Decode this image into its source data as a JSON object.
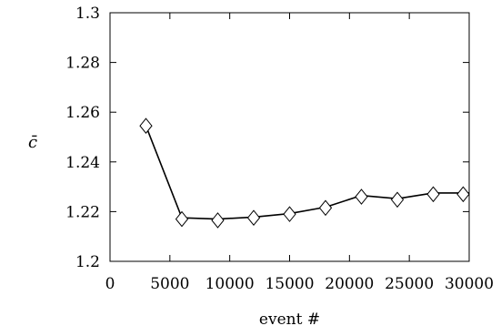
{
  "chart_data": {
    "type": "line",
    "xlabel": "event #",
    "ylabel": "c̄",
    "xlim": [
      0,
      30000
    ],
    "ylim": [
      1.2,
      1.3
    ],
    "x_ticks": [
      0,
      5000,
      10000,
      15000,
      20000,
      25000,
      30000
    ],
    "x_tick_labels": [
      "0",
      "5000",
      "10000",
      "15000",
      "20000",
      "25000",
      "30000"
    ],
    "y_ticks": [
      1.2,
      1.22,
      1.24,
      1.26,
      1.28,
      1.3
    ],
    "y_tick_labels": [
      "1.2",
      "1.22",
      "1.24",
      "1.26",
      "1.28",
      "1.3"
    ],
    "grid": false,
    "legend": false,
    "marker": "diamond-open",
    "line_color": "#000000",
    "series": [
      {
        "x": [
          3000,
          6000,
          9000,
          12000,
          15000,
          18000,
          21000,
          24000,
          27000,
          29500
        ],
        "y": [
          1.2545,
          1.217,
          1.2165,
          1.2175,
          1.219,
          1.2215,
          1.226,
          1.2248,
          1.227,
          1.227
        ],
        "line_x": [
          3000,
          6000,
          9000,
          12000,
          15000,
          18000,
          21000,
          24000,
          27000,
          30000
        ],
        "line_y": [
          1.2545,
          1.2175,
          1.217,
          1.2178,
          1.2192,
          1.2218,
          1.2265,
          1.2252,
          1.2275,
          1.2275
        ]
      }
    ]
  }
}
